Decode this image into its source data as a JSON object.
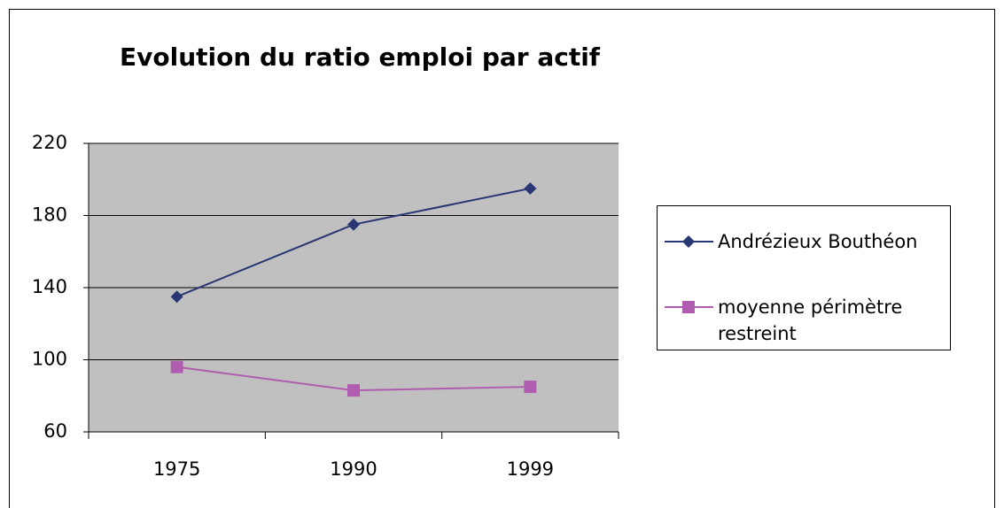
{
  "chart_data": {
    "type": "line",
    "title": "Evolution du ratio emploi par actif",
    "categories": [
      "1975",
      "1990",
      "1999"
    ],
    "series": [
      {
        "name": "Andrézieux Bouthéon",
        "color": "#283673",
        "marker": "diamond",
        "values": [
          135,
          175,
          195
        ]
      },
      {
        "name": "moyenne périmètre restreint",
        "color": "#b05cb0",
        "marker": "square",
        "values": [
          96,
          83,
          85
        ]
      }
    ],
    "ylim": [
      60,
      220
    ],
    "yticks": [
      60,
      100,
      140,
      180,
      220
    ],
    "grid": true,
    "legend": "right"
  }
}
